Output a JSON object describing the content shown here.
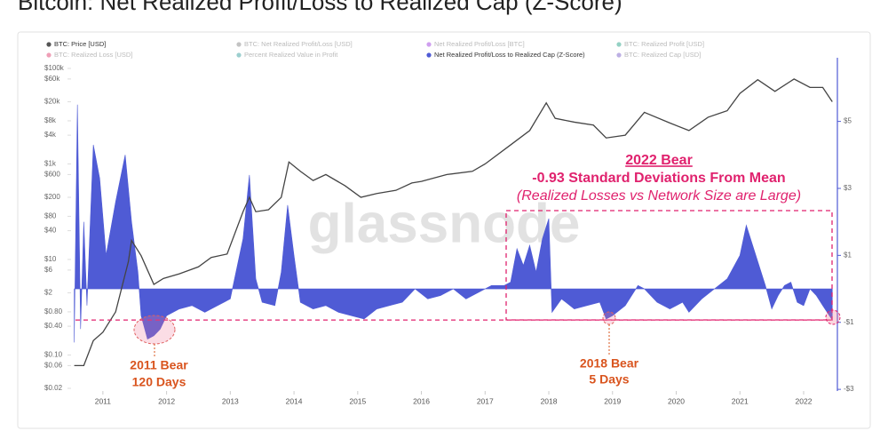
{
  "chart_data": {
    "type": "line-area",
    "title": "Bitcoin: Net Realized Profit/Loss to Realized Cap (Z-Score)",
    "watermark": "glassnode",
    "legend": [
      {
        "name": "BTC: Price [USD]",
        "color": "#555555",
        "active": true
      },
      {
        "name": "BTC: Net Realized Profit/Loss [USD]",
        "color": "#888888",
        "active": false
      },
      {
        "name": "Net Realized Profit/Loss [BTC]",
        "color": "#a040e0",
        "active": false
      },
      {
        "name": "BTC: Realized Profit [USD]",
        "color": "#2aa38a",
        "active": false
      },
      {
        "name": "BTC: Realized Loss [USD]",
        "color": "#e04070",
        "active": false
      },
      {
        "name": "Percent Realized Value in Profit",
        "color": "#3aa0a0",
        "active": false
      },
      {
        "name": "Net Realized Profit/Loss to Realized Cap (Z-Score)",
        "color": "#4f5bd5",
        "active": true
      },
      {
        "name": "BTC: Realized Cap [USD]",
        "color": "#7b61c9",
        "active": false
      }
    ],
    "xlim": [
      2010.5,
      2022.53
    ],
    "xticks": [
      2011,
      2012,
      2013,
      2014,
      2015,
      2016,
      2017,
      2018,
      2019,
      2020,
      2021,
      2022
    ],
    "ylim": [
      0.0176,
      167000
    ],
    "ylog": true,
    "yticks": [
      {
        "value": 0.02,
        "label": "$0.02"
      },
      {
        "value": 0.06,
        "label": "$0.06"
      },
      {
        "value": 0.1,
        "label": "$0.10"
      },
      {
        "value": 0.4,
        "label": "$0.40"
      },
      {
        "value": 0.8,
        "label": "$0.80"
      },
      {
        "value": 2,
        "label": "$2"
      },
      {
        "value": 6,
        "label": "$6"
      },
      {
        "value": 10,
        "label": "$10"
      },
      {
        "value": 40,
        "label": "$40"
      },
      {
        "value": 80,
        "label": "$80"
      },
      {
        "value": 200,
        "label": "$200"
      },
      {
        "value": 600,
        "label": "$600"
      },
      {
        "value": 1000,
        "label": "$1k"
      },
      {
        "value": 4000,
        "label": "$4k"
      },
      {
        "value": 8000,
        "label": "$8k"
      },
      {
        "value": 20000,
        "label": "$20k"
      },
      {
        "value": 60000,
        "label": "$60k"
      },
      {
        "value": 100000,
        "label": "$100k"
      }
    ],
    "y2lim": [
      -3.05,
      6.9
    ],
    "y2ticks": [
      {
        "value": 5,
        "label": "$5"
      },
      {
        "value": 3,
        "label": "$3"
      },
      {
        "value": 1,
        "label": "$1"
      },
      {
        "value": -1,
        "label": "-$1"
      },
      {
        "value": -3,
        "label": "-$3"
      }
    ],
    "grid": false,
    "series": [
      {
        "name": "BTC: Price [USD]",
        "color": "#444444",
        "axis": "y",
        "kind": "line",
        "x": [
          2010.55,
          2010.7,
          2010.85,
          2011.0,
          2011.2,
          2011.4,
          2011.45,
          2011.6,
          2011.8,
          2011.95,
          2012.2,
          2012.5,
          2012.7,
          2012.95,
          2013.2,
          2013.3,
          2013.4,
          2013.6,
          2013.8,
          2013.92,
          2014.1,
          2014.3,
          2014.5,
          2014.8,
          2015.05,
          2015.3,
          2015.6,
          2015.85,
          2016.0,
          2016.4,
          2016.8,
          2017.0,
          2017.4,
          2017.7,
          2017.96,
          2018.1,
          2018.4,
          2018.7,
          2018.9,
          2019.2,
          2019.5,
          2019.9,
          2020.2,
          2020.5,
          2020.8,
          2021.0,
          2021.28,
          2021.55,
          2021.85,
          2022.1,
          2022.3,
          2022.45
        ],
        "values": [
          0.06,
          0.06,
          0.2,
          0.3,
          0.8,
          9,
          25,
          12,
          3,
          4,
          5,
          7,
          11,
          13,
          100,
          200,
          100,
          110,
          200,
          1100,
          700,
          450,
          600,
          350,
          200,
          240,
          280,
          400,
          430,
          600,
          700,
          1000,
          2500,
          5000,
          19000,
          9000,
          7500,
          6500,
          3500,
          4000,
          12000,
          7200,
          5000,
          9500,
          13000,
          30000,
          58000,
          33000,
          60000,
          40000,
          40000,
          20000
        ]
      },
      {
        "name": "Net Realized Profit/Loss to Realized Cap (Z-Score)",
        "color": "#4f5bd5",
        "axis": "y2",
        "kind": "area",
        "x": [
          2010.55,
          2010.6,
          2010.65,
          2010.7,
          2010.75,
          2010.85,
          2010.95,
          2011.05,
          2011.2,
          2011.35,
          2011.45,
          2011.55,
          2011.6,
          2011.7,
          2011.8,
          2011.9,
          2012.0,
          2012.2,
          2012.4,
          2012.6,
          2012.8,
          2013.0,
          2013.2,
          2013.3,
          2013.4,
          2013.5,
          2013.7,
          2013.8,
          2013.9,
          2014.0,
          2014.1,
          2014.3,
          2014.5,
          2014.7,
          2014.9,
          2015.1,
          2015.3,
          2015.5,
          2015.7,
          2015.9,
          2016.1,
          2016.3,
          2016.5,
          2016.7,
          2016.9,
          2017.1,
          2017.3,
          2017.4,
          2017.5,
          2017.6,
          2017.7,
          2017.8,
          2017.9,
          2018.0,
          2018.05,
          2018.2,
          2018.4,
          2018.6,
          2018.8,
          2018.9,
          2019.0,
          2019.2,
          2019.4,
          2019.5,
          2019.7,
          2019.9,
          2020.1,
          2020.2,
          2020.4,
          2020.6,
          2020.8,
          2021.0,
          2021.1,
          2021.2,
          2021.4,
          2021.5,
          2021.6,
          2021.7,
          2021.8,
          2021.9,
          2022.0,
          2022.1,
          2022.2,
          2022.3,
          2022.45
        ],
        "values": [
          -1.6,
          5.5,
          -1.2,
          2.0,
          -0.5,
          4.3,
          3.3,
          1.0,
          2.6,
          4.0,
          2.0,
          0.5,
          -0.8,
          -1.5,
          -1.4,
          -1.2,
          -0.8,
          -0.6,
          -0.5,
          -0.7,
          -0.5,
          -0.3,
          1.5,
          3.4,
          0.3,
          -0.4,
          -0.5,
          0.5,
          2.5,
          1.0,
          -0.4,
          -0.6,
          -0.5,
          -0.7,
          -0.8,
          -0.9,
          -0.6,
          -0.5,
          -0.4,
          0.0,
          -0.3,
          -0.2,
          0.0,
          -0.3,
          -0.1,
          0.1,
          0.1,
          0.2,
          1.2,
          0.7,
          1.3,
          0.5,
          1.5,
          2.1,
          -0.7,
          -0.3,
          -0.6,
          -0.5,
          -0.4,
          -0.9,
          -0.8,
          -0.5,
          0.1,
          0.0,
          -0.4,
          -0.6,
          -0.4,
          -0.7,
          -0.3,
          0.0,
          0.3,
          1.0,
          1.9,
          1.3,
          0.1,
          -0.6,
          -0.2,
          0.1,
          0.2,
          -0.4,
          -0.5,
          0.0,
          -0.2,
          -0.5,
          -0.93
        ]
      }
    ],
    "reference_line": -0.93,
    "annotations": {
      "bear_2022_title": "2022 Bear",
      "bear_2022_value": "-0.93 Standard Deviations From Mean",
      "bear_2022_note": "(Realized Losses vs Network Size are Large)",
      "bear_2011_title": "2011 Bear",
      "bear_2011_days": "120 Days",
      "bear_2018_title": "2018 Bear",
      "bear_2018_days": "5 Days"
    }
  }
}
